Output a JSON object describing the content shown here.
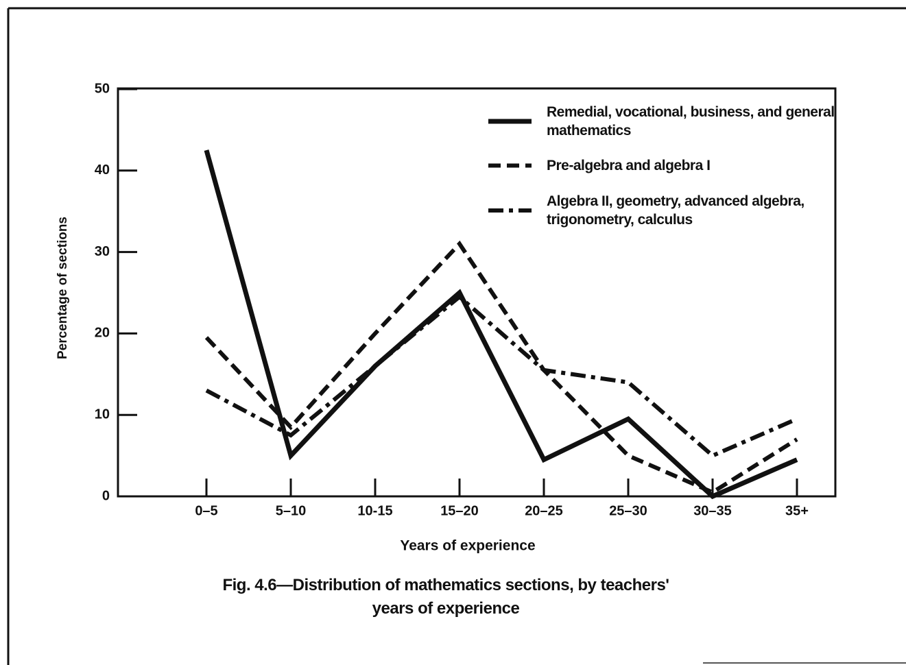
{
  "chart_data": {
    "type": "line",
    "title": [
      "Fig. 4.6—Distribution of mathematics sections, by teachers'",
      "years of experience"
    ],
    "x_label": "Years of experience",
    "y_label": "Percentage of sections",
    "categories": [
      "0–5",
      "5–10",
      "10-15",
      "15–20",
      "20–25",
      "25–30",
      "30–35",
      "35+"
    ],
    "series": [
      {
        "name": "Remedial, vocational, business, and general mathematics",
        "color": "#111111",
        "style": "solid",
        "values": [
          42.5,
          5,
          16,
          25,
          4.5,
          9.5,
          0,
          4.5
        ]
      },
      {
        "name": "Pre-algebra and algebra I",
        "color": "#111111",
        "style": "dashed",
        "values": [
          19.5,
          8.5,
          20,
          31,
          15.5,
          5,
          0.5,
          7
        ]
      },
      {
        "name": "Algebra II, geometry, advanced algebra, trigonometry, calculus",
        "color": "#111111",
        "style": "dashdot",
        "values": [
          13,
          7.5,
          16,
          24.5,
          15.5,
          14,
          5,
          9.5
        ]
      }
    ],
    "ylim": [
      0,
      50
    ],
    "yticks": [
      0,
      10,
      20,
      30,
      40,
      50
    ],
    "legend": "upper right"
  }
}
